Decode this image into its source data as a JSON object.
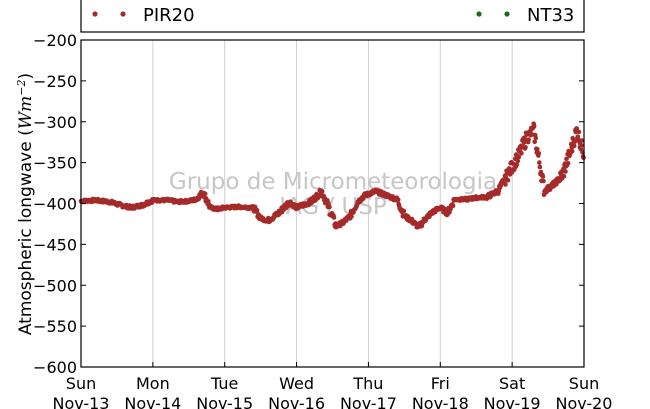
{
  "chart_data": {
    "type": "scatter",
    "ylabel": "Atmospheric longwave (Wm⁻²)",
    "ylabel_plain": "Atmospheric longwave (",
    "ylabel_unit": "Wm",
    "ylabel_exp": "−2",
    "ylabel_close": ")",
    "ylim": [
      -600,
      -200
    ],
    "y_ticks": [
      -200,
      -250,
      -300,
      -350,
      -400,
      -450,
      -500,
      -550,
      -600
    ],
    "y_tick_labels": [
      "−200",
      "−250",
      "−300",
      "−350",
      "−400",
      "−450",
      "−500",
      "−550",
      "−600"
    ],
    "x_ticks": [
      {
        "day": 0,
        "weekday": "Sun",
        "date": "Nov-13"
      },
      {
        "day": 1,
        "weekday": "Mon",
        "date": "Nov-14"
      },
      {
        "day": 2,
        "weekday": "Tue",
        "date": "Nov-15"
      },
      {
        "day": 3,
        "weekday": "Wed",
        "date": "Nov-16"
      },
      {
        "day": 4,
        "weekday": "Thu",
        "date": "Nov-17"
      },
      {
        "day": 5,
        "weekday": "Fri",
        "date": "Nov-18"
      },
      {
        "day": 6,
        "weekday": "Sat",
        "date": "Nov-19"
      },
      {
        "day": 7,
        "weekday": "Sun",
        "date": "Nov-20"
      }
    ],
    "xlim_days": [
      0,
      7
    ],
    "grid": "vertical",
    "legend_position": "top",
    "watermark": [
      "Grupo de Micrometeorologia",
      "IAG / USP"
    ],
    "series": [
      {
        "name": "PIR20",
        "color": "#a52a2a",
        "marker": "dots",
        "x": [
          0.0,
          0.2,
          0.4,
          0.55,
          0.7,
          0.85,
          1.0,
          1.2,
          1.35,
          1.5,
          1.6,
          1.7,
          1.8,
          1.9,
          2.0,
          2.2,
          2.4,
          2.5,
          2.6,
          2.75,
          2.9,
          3.0,
          3.2,
          3.35,
          3.45,
          3.55,
          3.65,
          3.75,
          3.85,
          3.95,
          4.1,
          4.25,
          4.4,
          4.5,
          4.6,
          4.7,
          4.8,
          4.9,
          5.0,
          5.1,
          5.2,
          5.35,
          5.5,
          5.65,
          5.8,
          5.9,
          6.0,
          6.1,
          6.2,
          6.3,
          6.45,
          6.6,
          6.7,
          6.8,
          6.9,
          7.0
        ],
        "y": [
          -397,
          -396,
          -398,
          -402,
          -405,
          -402,
          -396,
          -396,
          -398,
          -397,
          -395,
          -386,
          -405,
          -407,
          -405,
          -404,
          -405,
          -418,
          -421,
          -412,
          -398,
          -405,
          -398,
          -385,
          -405,
          -428,
          -423,
          -415,
          -398,
          -390,
          -385,
          -390,
          -395,
          -415,
          -421,
          -429,
          -418,
          -410,
          -405,
          -412,
          -395,
          -395,
          -393,
          -392,
          -385,
          -370,
          -355,
          -340,
          -320,
          -310,
          -385,
          -375,
          -365,
          -340,
          -310,
          -340
        ]
      },
      {
        "name": "NT33",
        "color": "#1a6b1a",
        "marker": "dots",
        "x": [],
        "y": []
      }
    ]
  }
}
